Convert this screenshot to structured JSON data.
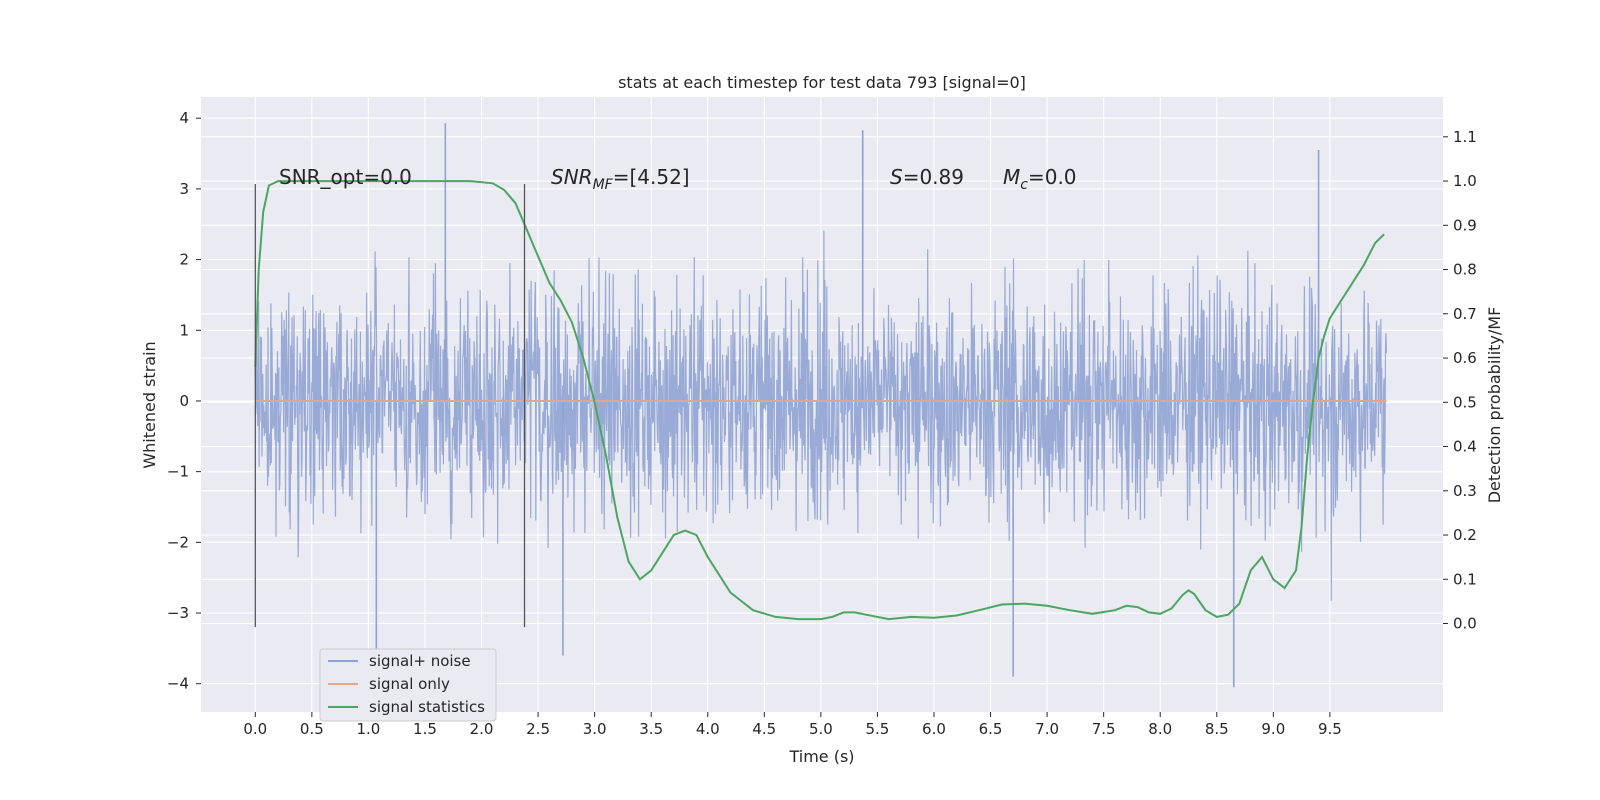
{
  "chart_data": {
    "type": "line",
    "title": "stats at each timestep for test data 793 [signal=0]",
    "xlabel": "Time (s)",
    "ylabel": "Whitened strain",
    "ylabel_right": "Detection probability/MF",
    "xlim": [
      -0.48,
      10.5
    ],
    "ylim": [
      -4.4,
      4.3
    ],
    "ylim_right": [
      -0.2,
      1.19
    ],
    "x_ticks": [
      "0.0",
      "0.5",
      "1.0",
      "1.5",
      "2.0",
      "2.5",
      "3.0",
      "3.5",
      "4.0",
      "4.5",
      "5.0",
      "5.5",
      "6.0",
      "6.5",
      "7.0",
      "7.5",
      "8.0",
      "8.5",
      "9.0",
      "9.5"
    ],
    "y_ticks": [
      "4",
      "3",
      "2",
      "1",
      "0",
      "−1",
      "−2",
      "−3",
      "−4"
    ],
    "y_right_ticks": [
      "1.1",
      "1.0",
      "0.9",
      "0.8",
      "0.7",
      "0.6",
      "0.5",
      "0.4",
      "0.3",
      "0.2",
      "0.1",
      "0.0"
    ],
    "grid": true,
    "legend_position": "lower-left",
    "annotations": {
      "snr_opt": "SNR_opt=0.0",
      "snr_mf_main": "SNR",
      "snr_mf_sub": "MF",
      "snr_mf_value": "=[4.52]",
      "s_main": "S",
      "s_value": "=0.89",
      "mc_main": "M",
      "mc_sub": "c",
      "mc_value": "=0.0"
    },
    "vertical_markers": [
      {
        "x": 0.0,
        "y_range": [
          -3.2,
          3.07
        ]
      },
      {
        "x": 2.38,
        "y_range": [
          -3.2,
          3.07
        ]
      }
    ],
    "series": [
      {
        "name": "signal+ noise",
        "color": "#8fa3d1",
        "description_kind": "noise",
        "x_range": [
          0.0,
          10.0
        ],
        "envelope_peak_max": 3.93,
        "envelope_peak_min": -4.05,
        "notable_peaks": [
          [
            1.68,
            3.93
          ],
          [
            5.37,
            3.83
          ],
          [
            9.4,
            3.55
          ],
          [
            8.65,
            -4.05
          ],
          [
            1.07,
            -3.6
          ],
          [
            2.72,
            -3.6
          ],
          [
            6.7,
            -3.9
          ]
        ]
      },
      {
        "name": "signal only",
        "color": "#e8a487",
        "x": [
          0.0,
          10.0
        ],
        "y": [
          0.0,
          0.0
        ]
      },
      {
        "name": "signal statistics",
        "color": "#4ca661",
        "axis": "right",
        "x": [
          0.0,
          0.03,
          0.07,
          0.12,
          0.2,
          0.3,
          0.5,
          1.0,
          1.5,
          1.9,
          2.1,
          2.2,
          2.3,
          2.4,
          2.5,
          2.6,
          2.7,
          2.8,
          2.9,
          3.0,
          3.1,
          3.2,
          3.3,
          3.4,
          3.5,
          3.6,
          3.7,
          3.8,
          3.9,
          4.0,
          4.2,
          4.4,
          4.6,
          4.8,
          5.0,
          5.1,
          5.2,
          5.3,
          5.4,
          5.6,
          5.8,
          6.0,
          6.2,
          6.4,
          6.6,
          6.8,
          7.0,
          7.2,
          7.4,
          7.6,
          7.7,
          7.8,
          7.9,
          8.0,
          8.1,
          8.2,
          8.25,
          8.3,
          8.4,
          8.5,
          8.6,
          8.7,
          8.8,
          8.9,
          9.0,
          9.1,
          9.2,
          9.25,
          9.3,
          9.35,
          9.4,
          9.45,
          9.5,
          9.6,
          9.7,
          9.8,
          9.9,
          9.98
        ],
        "y": [
          0.58,
          0.8,
          0.93,
          0.99,
          1.0,
          1.0,
          1.0,
          1.0,
          1.0,
          1.0,
          0.995,
          0.98,
          0.95,
          0.89,
          0.83,
          0.77,
          0.73,
          0.68,
          0.6,
          0.5,
          0.38,
          0.24,
          0.14,
          0.1,
          0.12,
          0.16,
          0.2,
          0.21,
          0.2,
          0.15,
          0.07,
          0.03,
          0.015,
          0.01,
          0.01,
          0.015,
          0.025,
          0.025,
          0.02,
          0.01,
          0.015,
          0.013,
          0.018,
          0.03,
          0.043,
          0.045,
          0.04,
          0.03,
          0.022,
          0.03,
          0.04,
          0.037,
          0.025,
          0.022,
          0.034,
          0.065,
          0.075,
          0.067,
          0.03,
          0.015,
          0.02,
          0.045,
          0.12,
          0.15,
          0.1,
          0.08,
          0.12,
          0.22,
          0.38,
          0.5,
          0.6,
          0.65,
          0.69,
          0.73,
          0.77,
          0.81,
          0.86,
          0.88
        ]
      }
    ]
  }
}
